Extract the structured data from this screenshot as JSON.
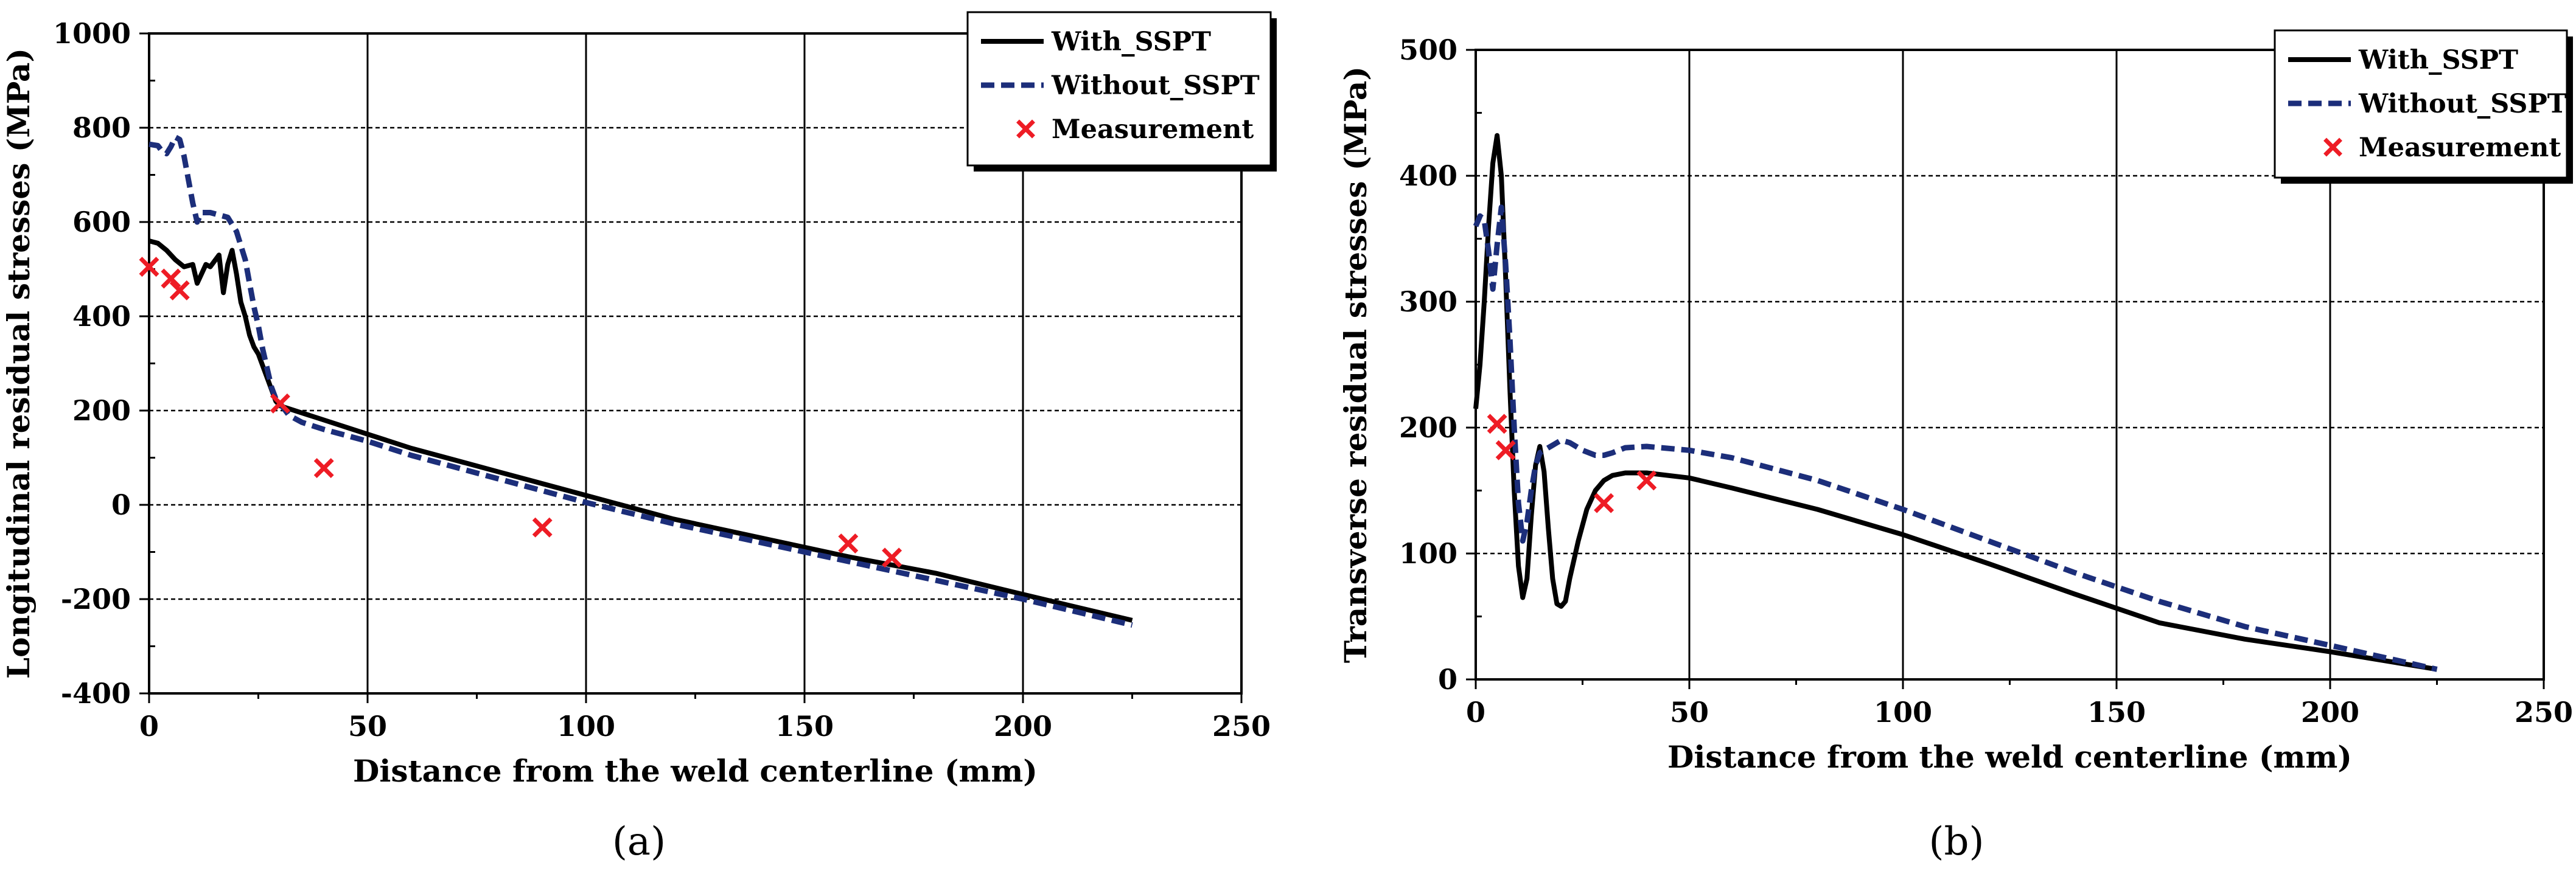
{
  "chart_data": [
    {
      "type": "line",
      "panel_label": "(a)",
      "title": "",
      "xlabel": "Distance from the weld centerline (mm)",
      "ylabel": "Longitudinal residual stresses (MPa)",
      "xlim": [
        0,
        250
      ],
      "ylim": [
        -400,
        1000
      ],
      "xticks": [
        0,
        50,
        100,
        150,
        200,
        250
      ],
      "yticks": [
        -400,
        -200,
        0,
        200,
        400,
        600,
        800,
        1000
      ],
      "xtick_labels": [
        "0",
        "50",
        "100",
        "150",
        "200",
        "250"
      ],
      "ytick_labels": [
        "-400",
        "-200",
        "0",
        "200",
        "400",
        "600",
        "800",
        "1000"
      ],
      "grid": true,
      "legend_position": "top-right",
      "series": [
        {
          "name": "With_SSPT",
          "style": "solid",
          "color": "#000000",
          "x": [
            0,
            2,
            4,
            6,
            8,
            10,
            11,
            12,
            13,
            14,
            16,
            17,
            18,
            19,
            20,
            21,
            22,
            23,
            24,
            25,
            27,
            29,
            30,
            35,
            40,
            50,
            60,
            80,
            100,
            120,
            140,
            160,
            180,
            200,
            225
          ],
          "y": [
            560,
            555,
            540,
            520,
            505,
            510,
            470,
            490,
            510,
            505,
            530,
            450,
            510,
            540,
            490,
            430,
            400,
            360,
            335,
            320,
            270,
            220,
            210,
            195,
            180,
            150,
            120,
            70,
            20,
            -30,
            -70,
            -110,
            -145,
            -190,
            -245
          ]
        },
        {
          "name": "Without_SSPT",
          "style": "dashed",
          "color": "#1c2e7a",
          "x": [
            0,
            2,
            3,
            4,
            5,
            6,
            7,
            8,
            9,
            10,
            11,
            12,
            14,
            16,
            18,
            20,
            22,
            23,
            24,
            25,
            26,
            27,
            28,
            29,
            30,
            32,
            35,
            40,
            50,
            60,
            80,
            100,
            120,
            140,
            160,
            180,
            200,
            225
          ],
          "y": [
            765,
            762,
            750,
            745,
            760,
            780,
            775,
            740,
            690,
            640,
            600,
            620,
            620,
            615,
            610,
            580,
            520,
            470,
            420,
            380,
            330,
            290,
            250,
            225,
            215,
            190,
            175,
            160,
            135,
            105,
            55,
            5,
            -40,
            -80,
            -120,
            -160,
            -200,
            -255
          ]
        },
        {
          "name": "Measurement",
          "style": "marker",
          "color": "#ee1c25",
          "x": [
            0,
            5,
            7,
            30,
            40,
            90,
            160,
            170
          ],
          "y": [
            505,
            480,
            455,
            215,
            78,
            -48,
            -82,
            -112
          ]
        }
      ]
    },
    {
      "type": "line",
      "panel_label": "(b)",
      "title": "",
      "xlabel": "Distance from the weld centerline (mm)",
      "ylabel": "Transverse residual stresses (MPa)",
      "xlim": [
        0,
        250
      ],
      "ylim": [
        0,
        500
      ],
      "xticks": [
        0,
        50,
        100,
        150,
        200,
        250
      ],
      "yticks": [
        0,
        100,
        200,
        300,
        400,
        500
      ],
      "xtick_labels": [
        "0",
        "50",
        "100",
        "150",
        "200",
        "250"
      ],
      "ytick_labels": [
        "0",
        "100",
        "200",
        "300",
        "400",
        "500"
      ],
      "grid": true,
      "legend_position": "top-right",
      "series": [
        {
          "name": "With_SSPT",
          "style": "solid",
          "color": "#000000",
          "x": [
            0,
            1,
            2,
            3,
            4,
            5,
            6,
            7,
            8,
            9,
            10,
            11,
            12,
            13,
            14,
            15,
            16,
            17,
            18,
            19,
            20,
            21,
            22,
            24,
            26,
            28,
            30,
            32,
            35,
            40,
            50,
            60,
            80,
            100,
            120,
            140,
            160,
            180,
            200,
            225
          ],
          "y": [
            215,
            250,
            300,
            360,
            410,
            432,
            400,
            320,
            230,
            150,
            90,
            65,
            80,
            130,
            170,
            185,
            165,
            120,
            80,
            60,
            58,
            62,
            80,
            110,
            135,
            150,
            158,
            162,
            164,
            164,
            160,
            152,
            135,
            115,
            92,
            68,
            45,
            32,
            22,
            8
          ]
        },
        {
          "name": "Without_SSPT",
          "style": "dashed",
          "color": "#1c2e7a",
          "x": [
            0,
            1,
            2,
            3,
            4,
            5,
            6,
            7,
            8,
            9,
            10,
            11,
            12,
            13,
            14,
            15,
            16,
            17,
            18,
            19,
            20,
            22,
            25,
            28,
            30,
            32,
            35,
            40,
            50,
            60,
            80,
            100,
            120,
            140,
            160,
            180,
            200,
            225
          ],
          "y": [
            360,
            368,
            365,
            340,
            310,
            345,
            375,
            330,
            270,
            200,
            140,
            110,
            125,
            150,
            170,
            180,
            182,
            184,
            186,
            188,
            190,
            188,
            182,
            178,
            178,
            180,
            184,
            185,
            182,
            176,
            158,
            135,
            110,
            85,
            62,
            42,
            27,
            8
          ]
        },
        {
          "name": "Measurement",
          "style": "marker",
          "color": "#ee1c25",
          "x": [
            5,
            7,
            30,
            40
          ],
          "y": [
            203,
            182,
            140,
            158
          ]
        }
      ]
    }
  ]
}
